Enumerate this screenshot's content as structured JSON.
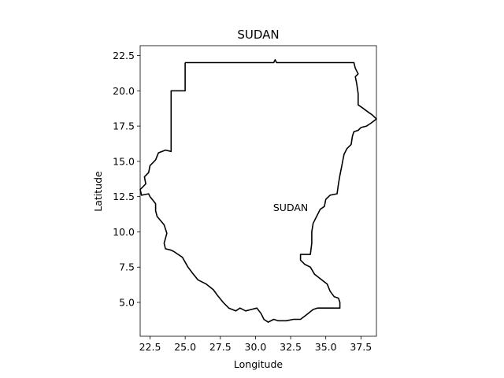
{
  "chart_data": {
    "type": "map",
    "title": "SUDAN",
    "xlabel": "Longitude",
    "ylabel": "Latitude",
    "xlim": [
      21.8,
      38.6
    ],
    "ylim": [
      2.6,
      23.2
    ],
    "x_ticks": [
      22.5,
      25.0,
      27.5,
      30.0,
      32.5,
      35.0,
      37.5
    ],
    "y_ticks": [
      5.0,
      7.5,
      10.0,
      12.5,
      15.0,
      17.5,
      20.0,
      22.5
    ],
    "tick_format": 1,
    "grid": false,
    "annotation": {
      "text": "SUDAN",
      "lon": 32.5,
      "lat": 11.7
    },
    "outline_color": "#000000",
    "outline": [
      [
        25.0,
        22.0
      ],
      [
        31.3,
        22.0
      ],
      [
        31.4,
        22.2
      ],
      [
        31.5,
        22.0
      ],
      [
        37.0,
        22.0
      ],
      [
        37.1,
        21.6
      ],
      [
        37.3,
        21.2
      ],
      [
        37.1,
        21.0
      ],
      [
        37.2,
        20.5
      ],
      [
        37.3,
        19.8
      ],
      [
        37.3,
        19.0
      ],
      [
        37.6,
        18.8
      ],
      [
        38.0,
        18.5
      ],
      [
        38.3,
        18.3
      ],
      [
        38.6,
        18.0
      ],
      [
        38.2,
        17.7
      ],
      [
        37.9,
        17.5
      ],
      [
        37.5,
        17.4
      ],
      [
        37.3,
        17.2
      ],
      [
        37.0,
        17.1
      ],
      [
        36.9,
        16.8
      ],
      [
        36.8,
        16.2
      ],
      [
        36.5,
        15.9
      ],
      [
        36.3,
        15.5
      ],
      [
        36.2,
        15.0
      ],
      [
        36.1,
        14.5
      ],
      [
        36.0,
        14.0
      ],
      [
        35.9,
        13.4
      ],
      [
        35.8,
        12.7
      ],
      [
        35.3,
        12.6
      ],
      [
        35.0,
        12.3
      ],
      [
        34.9,
        11.8
      ],
      [
        34.6,
        11.6
      ],
      [
        34.3,
        11.0
      ],
      [
        34.1,
        10.6
      ],
      [
        34.0,
        10.0
      ],
      [
        34.0,
        9.2
      ],
      [
        33.9,
        8.4
      ],
      [
        33.5,
        8.4
      ],
      [
        33.2,
        8.4
      ],
      [
        33.2,
        8.0
      ],
      [
        33.5,
        7.7
      ],
      [
        33.9,
        7.5
      ],
      [
        34.2,
        7.0
      ],
      [
        34.7,
        6.6
      ],
      [
        35.1,
        6.3
      ],
      [
        35.3,
        5.8
      ],
      [
        35.6,
        5.4
      ],
      [
        35.9,
        5.3
      ],
      [
        36.0,
        5.0
      ],
      [
        36.0,
        4.6
      ],
      [
        34.4,
        4.6
      ],
      [
        34.1,
        4.5
      ],
      [
        33.6,
        4.1
      ],
      [
        33.2,
        3.8
      ],
      [
        32.7,
        3.8
      ],
      [
        32.2,
        3.7
      ],
      [
        31.9,
        3.7
      ],
      [
        31.6,
        3.7
      ],
      [
        31.3,
        3.8
      ],
      [
        30.9,
        3.6
      ],
      [
        30.6,
        3.8
      ],
      [
        30.4,
        4.2
      ],
      [
        30.1,
        4.6
      ],
      [
        29.7,
        4.5
      ],
      [
        29.3,
        4.4
      ],
      [
        28.9,
        4.6
      ],
      [
        28.6,
        4.4
      ],
      [
        28.1,
        4.6
      ],
      [
        27.7,
        5.0
      ],
      [
        27.3,
        5.5
      ],
      [
        27.0,
        5.9
      ],
      [
        26.5,
        6.3
      ],
      [
        25.9,
        6.6
      ],
      [
        25.5,
        7.1
      ],
      [
        25.2,
        7.5
      ],
      [
        24.8,
        8.2
      ],
      [
        24.2,
        8.6
      ],
      [
        24.0,
        8.7
      ],
      [
        23.6,
        8.8
      ],
      [
        23.5,
        9.2
      ],
      [
        23.7,
        9.9
      ],
      [
        23.5,
        10.5
      ],
      [
        23.0,
        11.1
      ],
      [
        22.9,
        11.5
      ],
      [
        22.9,
        12.0
      ],
      [
        22.5,
        12.5
      ],
      [
        22.4,
        12.7
      ],
      [
        21.9,
        12.6
      ],
      [
        21.8,
        13.0
      ],
      [
        22.2,
        13.4
      ],
      [
        22.1,
        13.9
      ],
      [
        22.4,
        14.2
      ],
      [
        22.5,
        14.7
      ],
      [
        22.9,
        15.1
      ],
      [
        23.1,
        15.6
      ],
      [
        23.6,
        15.8
      ],
      [
        24.0,
        15.7
      ],
      [
        24.0,
        20.0
      ],
      [
        25.0,
        20.0
      ],
      [
        25.0,
        22.0
      ]
    ]
  }
}
